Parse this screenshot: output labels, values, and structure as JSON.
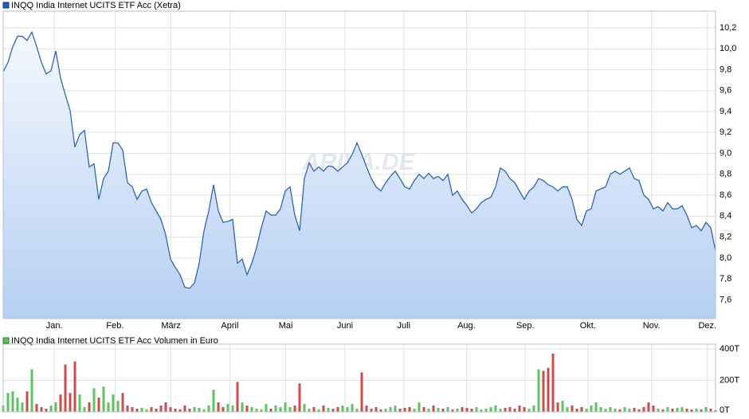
{
  "chart_data": [
    {
      "type": "line",
      "title": "INQQ India Internet UCITS ETF Acc (Xetra)",
      "watermark": "ARIVA.DE",
      "color": "#1f5bbf",
      "fill_top": "#f4f8fe",
      "fill_bottom": "#b6cff3",
      "values": [
        9.78,
        9.87,
        10.02,
        10.12,
        10.12,
        10.08,
        10.16,
        10.02,
        9.87,
        9.76,
        9.79,
        9.98,
        9.72,
        9.56,
        9.41,
        9.06,
        9.18,
        9.22,
        8.87,
        8.9,
        8.56,
        8.76,
        8.83,
        9.1,
        9.1,
        9.03,
        8.72,
        8.68,
        8.56,
        8.64,
        8.66,
        8.53,
        8.45,
        8.37,
        8.22,
        7.99,
        7.91,
        7.84,
        7.72,
        7.71,
        7.76,
        7.95,
        8.26,
        8.45,
        8.7,
        8.45,
        8.34,
        8.35,
        8.37,
        7.95,
        7.99,
        7.84,
        7.95,
        8.1,
        8.29,
        8.45,
        8.41,
        8.41,
        8.47,
        8.64,
        8.68,
        8.41,
        8.26,
        8.76,
        8.91,
        8.83,
        8.87,
        8.83,
        8.88,
        8.87,
        8.83,
        8.87,
        8.91,
        8.99,
        9.1,
        8.99,
        8.87,
        8.76,
        8.68,
        8.64,
        8.72,
        8.78,
        8.83,
        8.76,
        8.68,
        8.66,
        8.74,
        8.8,
        8.76,
        8.81,
        8.76,
        8.78,
        8.74,
        8.8,
        8.6,
        8.64,
        8.56,
        8.5,
        8.43,
        8.47,
        8.53,
        8.56,
        8.58,
        8.68,
        8.86,
        8.83,
        8.76,
        8.72,
        8.64,
        8.56,
        8.64,
        8.68,
        8.76,
        8.74,
        8.7,
        8.68,
        8.64,
        8.68,
        8.68,
        8.56,
        8.37,
        8.31,
        8.45,
        8.47,
        8.64,
        8.66,
        8.68,
        8.8,
        8.83,
        8.8,
        8.83,
        8.86,
        8.76,
        8.74,
        8.6,
        8.56,
        8.47,
        8.49,
        8.45,
        8.53,
        8.47,
        8.47,
        8.5,
        8.41,
        8.29,
        8.31,
        8.26,
        8.34,
        8.29,
        8.07
      ],
      "xlim": [
        0,
        149
      ],
      "xticks": [
        {
          "value": 10.7,
          "label": "Jan."
        },
        {
          "value": 23.4,
          "label": "Feb."
        },
        {
          "value": 35.1,
          "label": "März"
        },
        {
          "value": 47.4,
          "label": "April"
        },
        {
          "value": 59.1,
          "label": "Mai"
        },
        {
          "value": 71.5,
          "label": "Juni"
        },
        {
          "value": 83.8,
          "label": "Juli"
        },
        {
          "value": 96.9,
          "label": "Aug."
        },
        {
          "value": 109.2,
          "label": "Sep."
        },
        {
          "value": 122.3,
          "label": "Okt."
        },
        {
          "value": 135.6,
          "label": "Nov."
        },
        {
          "value": 147.3,
          "label": "Dez."
        }
      ],
      "ylim": [
        7.42,
        10.36
      ],
      "yticks": [
        {
          "value": 7.6,
          "label": "7,6"
        },
        {
          "value": 7.8,
          "label": "7,8"
        },
        {
          "value": 8.0,
          "label": "8,0"
        },
        {
          "value": 8.2,
          "label": "8,2"
        },
        {
          "value": 8.4,
          "label": "8,4"
        },
        {
          "value": 8.6,
          "label": "8,6"
        },
        {
          "value": 8.8,
          "label": "8,8"
        },
        {
          "value": 9.0,
          "label": "9,0"
        },
        {
          "value": 9.2,
          "label": "9,2"
        },
        {
          "value": 9.4,
          "label": "9,4"
        },
        {
          "value": 9.6,
          "label": "9,6"
        },
        {
          "value": 9.8,
          "label": "9,8"
        },
        {
          "value": 10.0,
          "label": "10,0"
        },
        {
          "value": 10.2,
          "label": "10,2"
        }
      ],
      "grid": true
    },
    {
      "type": "bar",
      "title": "INQQ India Internet UCITS ETF Acc Volumen in Euro",
      "color": "#5cc45c",
      "up_color": "#5cc45c",
      "down_color": "#d04a4a",
      "values": [
        40,
        120,
        130,
        90,
        60,
        130,
        270,
        50,
        30,
        20,
        40,
        60,
        110,
        300,
        120,
        320,
        110,
        30,
        60,
        150,
        90,
        160,
        60,
        110,
        70,
        120,
        40,
        30,
        20,
        25,
        15,
        30,
        20,
        40,
        60,
        30,
        20,
        15,
        40,
        20,
        30,
        25,
        15,
        40,
        140,
        60,
        30,
        50,
        40,
        190,
        60,
        40,
        30,
        20,
        15,
        50,
        20,
        40,
        30,
        60,
        30,
        40,
        180,
        50,
        20,
        30,
        15,
        40,
        25,
        20,
        30,
        40,
        30,
        50,
        20,
        250,
        40,
        20,
        30,
        15,
        20,
        30,
        40,
        20,
        25,
        30,
        20,
        60,
        30,
        20,
        40,
        25,
        20,
        30,
        15,
        20,
        30,
        25,
        20,
        30,
        15,
        20,
        30,
        40,
        20,
        25,
        30,
        20,
        40,
        30,
        20,
        40,
        270,
        260,
        280,
        370,
        60,
        70,
        30,
        40,
        20,
        30,
        20,
        40,
        60,
        30,
        20,
        30,
        20,
        15,
        30,
        20,
        25,
        15,
        30,
        60,
        40,
        20,
        15,
        30,
        20,
        25,
        30,
        20,
        15,
        20,
        15,
        30,
        20,
        10
      ],
      "xlim": [
        0,
        149
      ],
      "ylim": [
        0,
        430
      ],
      "yticks": [
        {
          "value": 0,
          "label": "0T"
        },
        {
          "value": 200,
          "label": "200T"
        },
        {
          "value": 400,
          "label": "400T"
        }
      ],
      "grid": true
    }
  ]
}
